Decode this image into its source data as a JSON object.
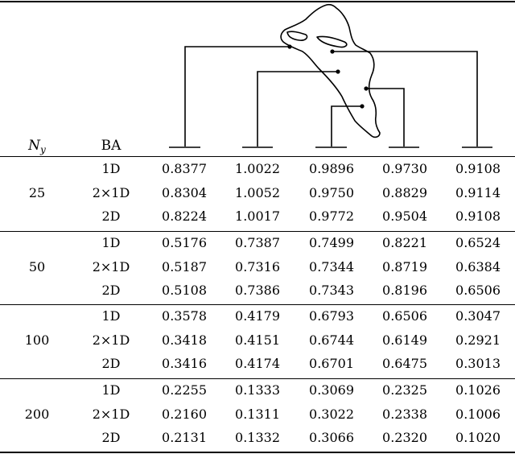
{
  "header": {
    "ny_symbol": "N",
    "ny_subscript": "y",
    "ba_label": "BA"
  },
  "groups": [
    {
      "ny": "25",
      "rows": [
        {
          "ba": "1D",
          "values": [
            "0.8377",
            "1.0022",
            "0.9896",
            "0.9730",
            "0.9108"
          ]
        },
        {
          "ba": "2×1D",
          "values": [
            "0.8304",
            "1.0052",
            "0.9750",
            "0.8829",
            "0.9114"
          ]
        },
        {
          "ba": "2D",
          "values": [
            "0.8224",
            "1.0017",
            "0.9772",
            "0.9504",
            "0.9108"
          ]
        }
      ]
    },
    {
      "ny": "50",
      "rows": [
        {
          "ba": "1D",
          "values": [
            "0.5176",
            "0.7387",
            "0.7499",
            "0.8221",
            "0.6524"
          ]
        },
        {
          "ba": "2×1D",
          "values": [
            "0.5187",
            "0.7316",
            "0.7344",
            "0.8719",
            "0.6384"
          ]
        },
        {
          "ba": "2D",
          "values": [
            "0.5108",
            "0.7386",
            "0.7343",
            "0.8196",
            "0.6506"
          ]
        }
      ]
    },
    {
      "ny": "100",
      "rows": [
        {
          "ba": "1D",
          "values": [
            "0.3578",
            "0.4179",
            "0.6793",
            "0.6506",
            "0.3047"
          ]
        },
        {
          "ba": "2×1D",
          "values": [
            "0.3418",
            "0.4151",
            "0.6744",
            "0.6149",
            "0.2921"
          ]
        },
        {
          "ba": "2D",
          "values": [
            "0.3416",
            "0.4174",
            "0.6701",
            "0.6475",
            "0.3013"
          ]
        }
      ]
    },
    {
      "ny": "200",
      "rows": [
        {
          "ba": "1D",
          "values": [
            "0.2255",
            "0.1333",
            "0.3069",
            "0.2325",
            "0.1026"
          ]
        },
        {
          "ba": "2×1D",
          "values": [
            "0.2160",
            "0.1311",
            "0.3022",
            "0.2338",
            "0.1006"
          ]
        },
        {
          "ba": "2D",
          "values": [
            "0.2131",
            "0.1332",
            "0.3066",
            "0.2320",
            "0.1020"
          ]
        }
      ]
    }
  ]
}
